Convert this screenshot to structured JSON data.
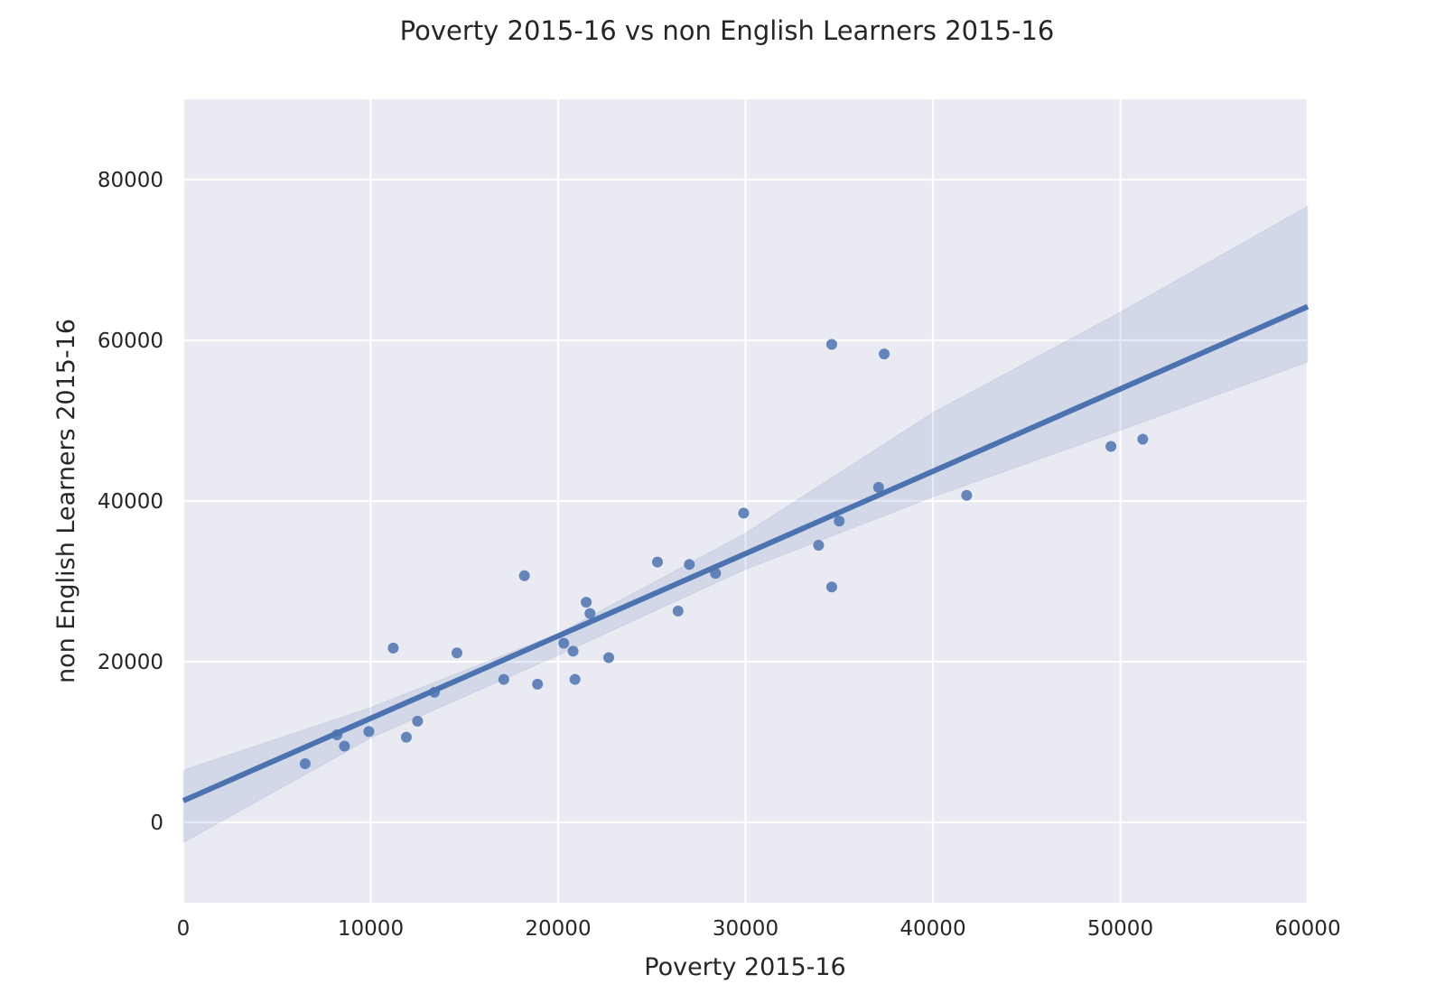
{
  "chart_data": {
    "type": "scatter",
    "title": "Poverty 2015-16 vs non English Learners 2015-16",
    "xlabel": "Poverty 2015-16",
    "ylabel": "non English Learners 2015-16",
    "xlim": [
      0,
      60000
    ],
    "ylim": [
      -10000,
      90000
    ],
    "xticks": [
      0,
      10000,
      20000,
      30000,
      40000,
      50000,
      60000
    ],
    "yticks": [
      0,
      20000,
      40000,
      60000,
      80000
    ],
    "grid": true,
    "legend": "none",
    "colors": {
      "background": "#eaeaf2",
      "grid": "#ffffff",
      "points": "#4c72b0",
      "line": "#4c72b0",
      "band": "#4c72b0"
    },
    "points": [
      {
        "x": 6500,
        "y": 7300
      },
      {
        "x": 8200,
        "y": 10900
      },
      {
        "x": 8600,
        "y": 9500
      },
      {
        "x": 9900,
        "y": 11300
      },
      {
        "x": 11200,
        "y": 21700
      },
      {
        "x": 11900,
        "y": 10600
      },
      {
        "x": 12500,
        "y": 12600
      },
      {
        "x": 13400,
        "y": 16200
      },
      {
        "x": 14600,
        "y": 21100
      },
      {
        "x": 17100,
        "y": 17800
      },
      {
        "x": 18200,
        "y": 30700
      },
      {
        "x": 18900,
        "y": 17200
      },
      {
        "x": 20300,
        "y": 22300
      },
      {
        "x": 20800,
        "y": 21300
      },
      {
        "x": 20900,
        "y": 17800
      },
      {
        "x": 21500,
        "y": 27400
      },
      {
        "x": 21700,
        "y": 26000
      },
      {
        "x": 22700,
        "y": 20500
      },
      {
        "x": 25300,
        "y": 32400
      },
      {
        "x": 26400,
        "y": 26300
      },
      {
        "x": 27000,
        "y": 32100
      },
      {
        "x": 28400,
        "y": 31000
      },
      {
        "x": 29900,
        "y": 38500
      },
      {
        "x": 33900,
        "y": 34500
      },
      {
        "x": 34600,
        "y": 29300
      },
      {
        "x": 34600,
        "y": 59500
      },
      {
        "x": 35000,
        "y": 37500
      },
      {
        "x": 37100,
        "y": 41700
      },
      {
        "x": 37400,
        "y": 58300
      },
      {
        "x": 41800,
        "y": 40700
      },
      {
        "x": 49500,
        "y": 46800
      },
      {
        "x": 51200,
        "y": 47700
      }
    ],
    "regression": {
      "x": [
        0,
        60000
      ],
      "y": [
        2700,
        64200
      ],
      "ci_upper": [
        {
          "x": 0,
          "y": 6500
        },
        {
          "x": 10000,
          "y": 14300
        },
        {
          "x": 20000,
          "y": 23500
        },
        {
          "x": 30000,
          "y": 36000
        },
        {
          "x": 40000,
          "y": 51000
        },
        {
          "x": 50000,
          "y": 63500
        },
        {
          "x": 60000,
          "y": 76700
        }
      ],
      "ci_lower": [
        {
          "x": 0,
          "y": -2500
        },
        {
          "x": 10000,
          "y": 10500
        },
        {
          "x": 20000,
          "y": 20800
        },
        {
          "x": 30000,
          "y": 31500
        },
        {
          "x": 40000,
          "y": 40500
        },
        {
          "x": 50000,
          "y": 48800
        },
        {
          "x": 60000,
          "y": 57300
        }
      ]
    }
  }
}
